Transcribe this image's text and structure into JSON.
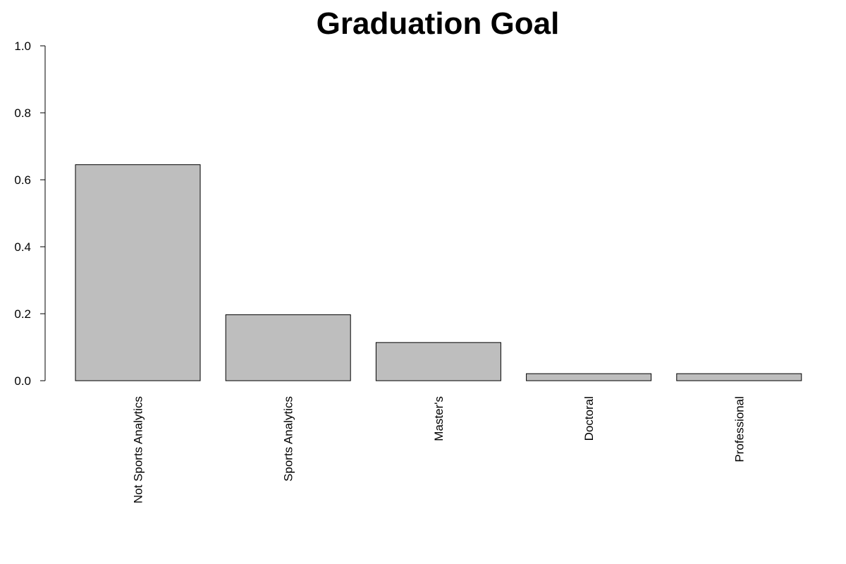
{
  "chart_data": {
    "type": "bar",
    "title": "Graduation Goal",
    "xlabel": "",
    "ylabel": "",
    "categories": [
      "Not Sports Analytics",
      "Sports Analytics",
      "Master's",
      "Doctoral",
      "Professional"
    ],
    "values": [
      0.645,
      0.197,
      0.114,
      0.021,
      0.021
    ],
    "ylim": [
      0,
      1
    ],
    "yticks": [
      "0.0",
      "0.2",
      "0.4",
      "0.6",
      "0.8",
      "1.0"
    ],
    "bar_color": "#bebebe",
    "grid": false,
    "legend": "none"
  }
}
